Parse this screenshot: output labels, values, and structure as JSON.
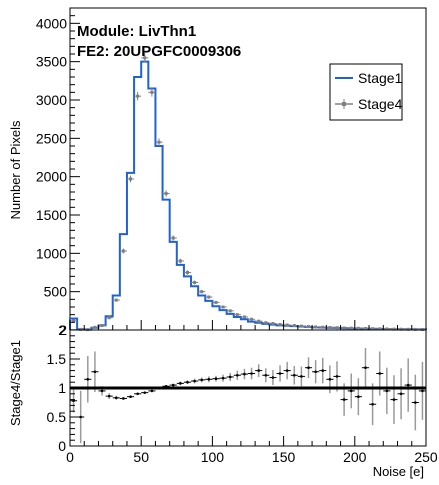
{
  "chart_data": [
    {
      "type": "histogram",
      "panel": "main",
      "annotations": [
        "Module: LivThn1",
        "FE2: 20UPGFC0009306"
      ],
      "ylabel": "Number of Pixels",
      "xlim": [
        0,
        250
      ],
      "ylim": [
        0,
        4200
      ],
      "bin_width": 5,
      "x_ticks": [
        0,
        50,
        100,
        150,
        200,
        250
      ],
      "y_ticks": [
        2,
        500,
        1000,
        1500,
        2000,
        2500,
        3000,
        3500,
        4000
      ],
      "legend": {
        "position": "top-right",
        "entries": [
          "Stage1",
          "Stage4"
        ]
      },
      "colors": {
        "Stage1": "#1f62d6",
        "Stage4": "#808080"
      },
      "series": [
        {
          "name": "Stage1",
          "style": "step",
          "x": [
            0,
            5,
            10,
            15,
            20,
            25,
            30,
            35,
            40,
            45,
            50,
            55,
            60,
            65,
            70,
            75,
            80,
            85,
            90,
            95,
            100,
            105,
            110,
            115,
            120,
            125,
            130,
            135,
            140,
            145,
            150,
            155,
            160,
            165,
            170,
            175,
            180,
            185,
            190,
            195,
            200,
            205,
            210,
            215,
            220,
            225,
            230,
            235,
            240,
            245
          ],
          "values": [
            150,
            10,
            5,
            30,
            60,
            180,
            450,
            1250,
            2050,
            3300,
            3500,
            3150,
            2400,
            1700,
            1150,
            850,
            700,
            570,
            450,
            380,
            310,
            260,
            210,
            170,
            140,
            110,
            95,
            80,
            70,
            60,
            55,
            50,
            45,
            40,
            35,
            32,
            30,
            28,
            25,
            22,
            20,
            18,
            16,
            14,
            12,
            10,
            10,
            9,
            8,
            8
          ]
        },
        {
          "name": "Stage4",
          "style": "points",
          "x": [
            0,
            5,
            10,
            15,
            20,
            25,
            30,
            35,
            40,
            45,
            50,
            55,
            60,
            65,
            70,
            75,
            80,
            85,
            90,
            95,
            100,
            105,
            110,
            115,
            120,
            125,
            130,
            135,
            140,
            145,
            150,
            155,
            160,
            165,
            170,
            175,
            180,
            185,
            190,
            195,
            200,
            205,
            210,
            215,
            220,
            225,
            230,
            235,
            240,
            245
          ],
          "values": [
            120,
            8,
            5,
            35,
            58,
            160,
            390,
            1030,
            1970,
            3050,
            3550,
            3100,
            2450,
            1780,
            1200,
            900,
            750,
            620,
            500,
            430,
            360,
            300,
            250,
            200,
            170,
            140,
            115,
            95,
            85,
            72,
            65,
            58,
            50,
            45,
            40,
            36,
            32,
            30,
            26,
            24,
            22,
            19,
            17,
            15,
            13,
            11,
            10,
            9,
            8,
            7
          ]
        }
      ]
    },
    {
      "type": "scatter",
      "panel": "ratio",
      "xlabel": "Noise [e]",
      "ylabel": "Stage4/Stage1",
      "xlim": [
        0,
        250
      ],
      "ylim": [
        0,
        2
      ],
      "reference_line": 1,
      "x_ticks": [
        0,
        50,
        100,
        150,
        200,
        250
      ],
      "y_ticks": [
        0,
        0.5,
        1,
        1.5,
        2
      ],
      "series": [
        {
          "name": "Stage4/Stage1",
          "x": [
            2.5,
            7.5,
            12.5,
            17.5,
            22.5,
            27.5,
            32.5,
            37.5,
            42.5,
            47.5,
            52.5,
            57.5,
            62.5,
            67.5,
            72.5,
            77.5,
            82.5,
            87.5,
            92.5,
            97.5,
            102.5,
            107.5,
            112.5,
            117.5,
            122.5,
            127.5,
            132.5,
            137.5,
            142.5,
            147.5,
            152.5,
            157.5,
            162.5,
            167.5,
            172.5,
            177.5,
            182.5,
            187.5,
            192.5,
            197.5,
            202.5,
            207.5,
            212.5,
            217.5,
            222.5,
            227.5,
            232.5,
            237.5,
            242.5,
            247.5
          ],
          "values": [
            0.78,
            0.5,
            1.15,
            1.28,
            0.95,
            0.86,
            0.83,
            0.82,
            0.85,
            0.9,
            0.92,
            0.95,
            1.0,
            1.03,
            1.05,
            1.08,
            1.1,
            1.12,
            1.14,
            1.15,
            1.16,
            1.17,
            1.19,
            1.22,
            1.24,
            1.25,
            1.3,
            1.22,
            1.18,
            1.25,
            1.3,
            1.22,
            1.2,
            1.35,
            1.28,
            1.3,
            1.15,
            1.2,
            0.8,
            0.95,
            0.85,
            1.35,
            0.72,
            1.25,
            0.95,
            0.8,
            0.9,
            1.05,
            0.75,
            0.95
          ],
          "errors": [
            0.2,
            0.45,
            0.4,
            0.35,
            0.08,
            0.05,
            0.03,
            0.02,
            0.02,
            0.01,
            0.01,
            0.01,
            0.01,
            0.02,
            0.02,
            0.03,
            0.03,
            0.04,
            0.04,
            0.05,
            0.05,
            0.06,
            0.07,
            0.08,
            0.09,
            0.1,
            0.11,
            0.12,
            0.13,
            0.14,
            0.15,
            0.16,
            0.17,
            0.18,
            0.2,
            0.22,
            0.24,
            0.26,
            0.28,
            0.3,
            0.32,
            0.34,
            0.36,
            0.38,
            0.4,
            0.42,
            0.44,
            0.46,
            0.48,
            0.5
          ]
        }
      ]
    }
  ]
}
